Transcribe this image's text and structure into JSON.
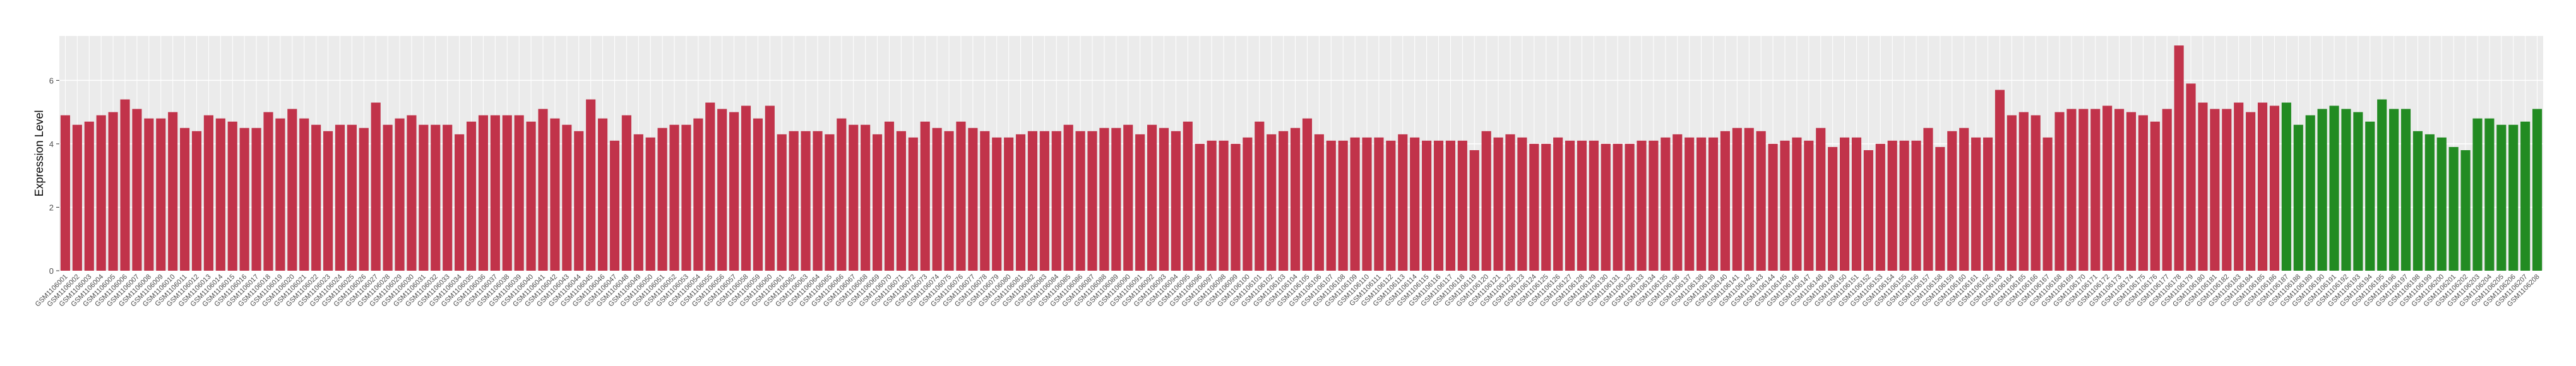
{
  "chart_data": {
    "type": "bar",
    "y_label": "Expression Level",
    "ylim": [
      0,
      7.4
    ],
    "yticks": [
      0,
      2,
      4,
      6
    ],
    "grid": true,
    "categories": [
      "GSM1106001",
      "GSM1106002",
      "GSM1106003",
      "GSM1106004",
      "GSM1106005",
      "GSM1106006",
      "GSM1106007",
      "GSM1106008",
      "GSM1106009",
      "GSM1106010",
      "GSM1106011",
      "GSM1106012",
      "GSM1106013",
      "GSM1106014",
      "GSM1106015",
      "GSM1106016",
      "GSM1106017",
      "GSM1106018",
      "GSM1106019",
      "GSM1106020",
      "GSM1106021",
      "GSM1106022",
      "GSM1106023",
      "GSM1106024",
      "GSM1106025",
      "GSM1106026",
      "GSM1106027",
      "GSM1106028",
      "GSM1106029",
      "GSM1106030",
      "GSM1106031",
      "GSM1106032",
      "GSM1106033",
      "GSM1106034",
      "GSM1106035",
      "GSM1106036",
      "GSM1106037",
      "GSM1106038",
      "GSM1106039",
      "GSM1106040",
      "GSM1106041",
      "GSM1106042",
      "GSM1106043",
      "GSM1106044",
      "GSM1106045",
      "GSM1106046",
      "GSM1106047",
      "GSM1106048",
      "GSM1106049",
      "GSM1106050",
      "GSM1106051",
      "GSM1106052",
      "GSM1106053",
      "GSM1106054",
      "GSM1106055",
      "GSM1106056",
      "GSM1106057",
      "GSM1106058",
      "GSM1106059",
      "GSM1106060",
      "GSM1106061",
      "GSM1106062",
      "GSM1106063",
      "GSM1106064",
      "GSM1106065",
      "GSM1106066",
      "GSM1106067",
      "GSM1106068",
      "GSM1106069",
      "GSM1106070",
      "GSM1106071",
      "GSM1106072",
      "GSM1106073",
      "GSM1106074",
      "GSM1106075",
      "GSM1106076",
      "GSM1106077",
      "GSM1106078",
      "GSM1106079",
      "GSM1106080",
      "GSM1106081",
      "GSM1106082",
      "GSM1106083",
      "GSM1106084",
      "GSM1106085",
      "GSM1106086",
      "GSM1106087",
      "GSM1106088",
      "GSM1106089",
      "GSM1106090",
      "GSM1106091",
      "GSM1106092",
      "GSM1106093",
      "GSM1106094",
      "GSM1106095",
      "GSM1106096",
      "GSM1106097",
      "GSM1106098",
      "GSM1106099",
      "GSM1106100",
      "GSM1106101",
      "GSM1106102",
      "GSM1106103",
      "GSM1106104",
      "GSM1106105",
      "GSM1106106",
      "GSM1106107",
      "GSM1106108",
      "GSM1106109",
      "GSM1106110",
      "GSM1106111",
      "GSM1106112",
      "GSM1106113",
      "GSM1106114",
      "GSM1106115",
      "GSM1106116",
      "GSM1106117",
      "GSM1106118",
      "GSM1106119",
      "GSM1106120",
      "GSM1106121",
      "GSM1106122",
      "GSM1106123",
      "GSM1106124",
      "GSM1106125",
      "GSM1106126",
      "GSM1106127",
      "GSM1106128",
      "GSM1106129",
      "GSM1106130",
      "GSM1106131",
      "GSM1106132",
      "GSM1106133",
      "GSM1106134",
      "GSM1106135",
      "GSM1106136",
      "GSM1106137",
      "GSM1106138",
      "GSM1106139",
      "GSM1106140",
      "GSM1106141",
      "GSM1106142",
      "GSM1106143",
      "GSM1106144",
      "GSM1106145",
      "GSM1106146",
      "GSM1106147",
      "GSM1106148",
      "GSM1106149",
      "GSM1106150",
      "GSM1106151",
      "GSM1106152",
      "GSM1106153",
      "GSM1106154",
      "GSM1106155",
      "GSM1106156",
      "GSM1106157",
      "GSM1106158",
      "GSM1106159",
      "GSM1106160",
      "GSM1106161",
      "GSM1106162",
      "GSM1106163",
      "GSM1106164",
      "GSM1106165",
      "GSM1106166",
      "GSM1106167",
      "GSM1106168",
      "GSM1106169",
      "GSM1106170",
      "GSM1106171",
      "GSM1106172",
      "GSM1106173",
      "GSM1106174",
      "GSM1106175",
      "GSM1106176",
      "GSM1106177",
      "GSM1106178",
      "GSM1106179",
      "GSM1106180",
      "GSM1106181",
      "GSM1106182",
      "GSM1106183",
      "GSM1106184",
      "GSM1106185",
      "GSM1106186",
      "GSM1106187",
      "GSM1106188",
      "GSM1106189",
      "GSM1106190",
      "GSM1106191",
      "GSM1106192",
      "GSM1106193",
      "GSM1106194",
      "GSM1106195",
      "GSM1106196",
      "GSM1106197",
      "GSM1106198",
      "GSM1106199",
      "GSM1106200",
      "GSM1106201",
      "GSM1106202",
      "GSM1106203",
      "GSM1106204",
      "GSM1106205",
      "GSM1106206",
      "GSM1106207",
      "GSM1106208"
    ],
    "values": [
      4.9,
      4.6,
      4.7,
      4.9,
      5.0,
      5.4,
      5.1,
      4.8,
      4.8,
      5.0,
      4.5,
      4.4,
      4.9,
      4.8,
      4.7,
      4.5,
      4.5,
      5.0,
      4.8,
      5.1,
      4.8,
      4.6,
      4.4,
      4.6,
      4.6,
      4.5,
      5.3,
      4.6,
      4.8,
      4.9,
      4.6,
      4.6,
      4.6,
      4.3,
      4.7,
      4.9,
      4.9,
      4.9,
      4.9,
      4.7,
      5.1,
      4.8,
      4.6,
      4.4,
      5.4,
      4.8,
      4.1,
      4.9,
      4.3,
      4.2,
      4.5,
      4.6,
      4.6,
      4.8,
      5.3,
      5.1,
      5.0,
      5.2,
      4.8,
      5.2,
      4.3,
      4.4,
      4.4,
      4.4,
      4.3,
      4.8,
      4.6,
      4.6,
      4.3,
      4.7,
      4.4,
      4.2,
      4.7,
      4.5,
      4.4,
      4.7,
      4.5,
      4.4,
      4.2,
      4.2,
      4.3,
      4.4,
      4.4,
      4.4,
      4.6,
      4.4,
      4.4,
      4.5,
      4.5,
      4.6,
      4.3,
      4.6,
      4.5,
      4.4,
      4.7,
      4.0,
      4.1,
      4.1,
      4.0,
      4.2,
      4.7,
      4.3,
      4.4,
      4.5,
      4.8,
      4.3,
      4.1,
      4.1,
      4.2,
      4.2,
      4.2,
      4.1,
      4.3,
      4.2,
      4.1,
      4.1,
      4.1,
      4.1,
      3.8,
      4.4,
      4.2,
      4.3,
      4.2,
      4.0,
      4.0,
      4.2,
      4.1,
      4.1,
      4.1,
      4.0,
      4.0,
      4.0,
      4.1,
      4.1,
      4.2,
      4.3,
      4.2,
      4.2,
      4.2,
      4.4,
      4.5,
      4.5,
      4.4,
      4.0,
      4.1,
      4.2,
      4.1,
      4.5,
      3.9,
      4.2,
      4.2,
      3.8,
      4.0,
      4.1,
      4.1,
      4.1,
      4.5,
      3.9,
      4.4,
      4.5,
      4.2,
      4.2,
      5.7,
      4.9,
      5.0,
      4.9,
      4.2,
      5.0,
      5.1,
      5.1,
      5.1,
      5.2,
      5.1,
      5.0,
      4.9,
      4.7,
      5.1,
      7.1,
      5.9,
      5.3,
      5.1,
      5.1,
      5.3,
      5.0,
      5.3,
      5.2,
      5.3,
      4.6,
      4.9,
      5.1,
      5.2,
      5.1,
      5.0,
      4.7,
      5.4,
      5.1,
      5.1,
      4.4,
      4.3,
      4.2,
      3.9,
      3.8,
      4.8,
      4.8,
      4.6,
      4.6,
      4.7,
      5.1
    ],
    "colors": [
      "#c1334a",
      "#c1334a",
      "#c1334a",
      "#c1334a",
      "#c1334a",
      "#c1334a",
      "#c1334a",
      "#c1334a",
      "#c1334a",
      "#c1334a",
      "#c1334a",
      "#c1334a",
      "#c1334a",
      "#c1334a",
      "#c1334a",
      "#c1334a",
      "#c1334a",
      "#c1334a",
      "#c1334a",
      "#c1334a",
      "#c1334a",
      "#c1334a",
      "#c1334a",
      "#c1334a",
      "#c1334a",
      "#c1334a",
      "#c1334a",
      "#c1334a",
      "#c1334a",
      "#c1334a",
      "#c1334a",
      "#c1334a",
      "#c1334a",
      "#c1334a",
      "#c1334a",
      "#c1334a",
      "#c1334a",
      "#c1334a",
      "#c1334a",
      "#c1334a",
      "#c1334a",
      "#c1334a",
      "#c1334a",
      "#c1334a",
      "#c1334a",
      "#c1334a",
      "#c1334a",
      "#c1334a",
      "#c1334a",
      "#c1334a",
      "#c1334a",
      "#c1334a",
      "#c1334a",
      "#c1334a",
      "#c1334a",
      "#c1334a",
      "#c1334a",
      "#c1334a",
      "#c1334a",
      "#c1334a",
      "#c1334a",
      "#c1334a",
      "#c1334a",
      "#c1334a",
      "#c1334a",
      "#c1334a",
      "#c1334a",
      "#c1334a",
      "#c1334a",
      "#c1334a",
      "#c1334a",
      "#c1334a",
      "#c1334a",
      "#c1334a",
      "#c1334a",
      "#c1334a",
      "#c1334a",
      "#c1334a",
      "#c1334a",
      "#c1334a",
      "#c1334a",
      "#c1334a",
      "#c1334a",
      "#c1334a",
      "#c1334a",
      "#c1334a",
      "#c1334a",
      "#c1334a",
      "#c1334a",
      "#c1334a",
      "#c1334a",
      "#c1334a",
      "#c1334a",
      "#c1334a",
      "#c1334a",
      "#c1334a",
      "#c1334a",
      "#c1334a",
      "#c1334a",
      "#c1334a",
      "#c1334a",
      "#c1334a",
      "#c1334a",
      "#c1334a",
      "#c1334a",
      "#c1334a",
      "#c1334a",
      "#c1334a",
      "#c1334a",
      "#c1334a",
      "#c1334a",
      "#c1334a",
      "#c1334a",
      "#c1334a",
      "#c1334a",
      "#c1334a",
      "#c1334a",
      "#c1334a",
      "#c1334a",
      "#c1334a",
      "#c1334a",
      "#c1334a",
      "#c1334a",
      "#c1334a",
      "#c1334a",
      "#c1334a",
      "#c1334a",
      "#c1334a",
      "#c1334a",
      "#c1334a",
      "#c1334a",
      "#c1334a",
      "#c1334a",
      "#c1334a",
      "#c1334a",
      "#c1334a",
      "#c1334a",
      "#c1334a",
      "#c1334a",
      "#c1334a",
      "#c1334a",
      "#c1334a",
      "#c1334a",
      "#c1334a",
      "#c1334a",
      "#c1334a",
      "#c1334a",
      "#c1334a",
      "#c1334a",
      "#c1334a",
      "#c1334a",
      "#c1334a",
      "#c1334a",
      "#c1334a",
      "#c1334a",
      "#c1334a",
      "#c1334a",
      "#c1334a",
      "#c1334a",
      "#c1334a",
      "#c1334a",
      "#c1334a",
      "#c1334a",
      "#c1334a",
      "#c1334a",
      "#c1334a",
      "#c1334a",
      "#c1334a",
      "#c1334a",
      "#c1334a",
      "#c1334a",
      "#c1334a",
      "#c1334a",
      "#c1334a",
      "#c1334a",
      "#c1334a",
      "#c1334a",
      "#c1334a",
      "#c1334a",
      "#c1334a",
      "#c1334a",
      "#c1334a",
      "#c1334a",
      "#c1334a",
      "#c1334a",
      "#c1334a",
      "#228b22",
      "#228b22",
      "#228b22",
      "#228b22",
      "#228b22",
      "#228b22",
      "#228b22",
      "#228b22",
      "#228b22",
      "#228b22",
      "#228b22",
      "#228b22",
      "#228b22",
      "#228b22",
      "#228b22",
      "#228b22",
      "#228b22",
      "#228b22",
      "#228b22",
      "#228b22",
      "#228b22",
      "#228b22"
    ]
  }
}
